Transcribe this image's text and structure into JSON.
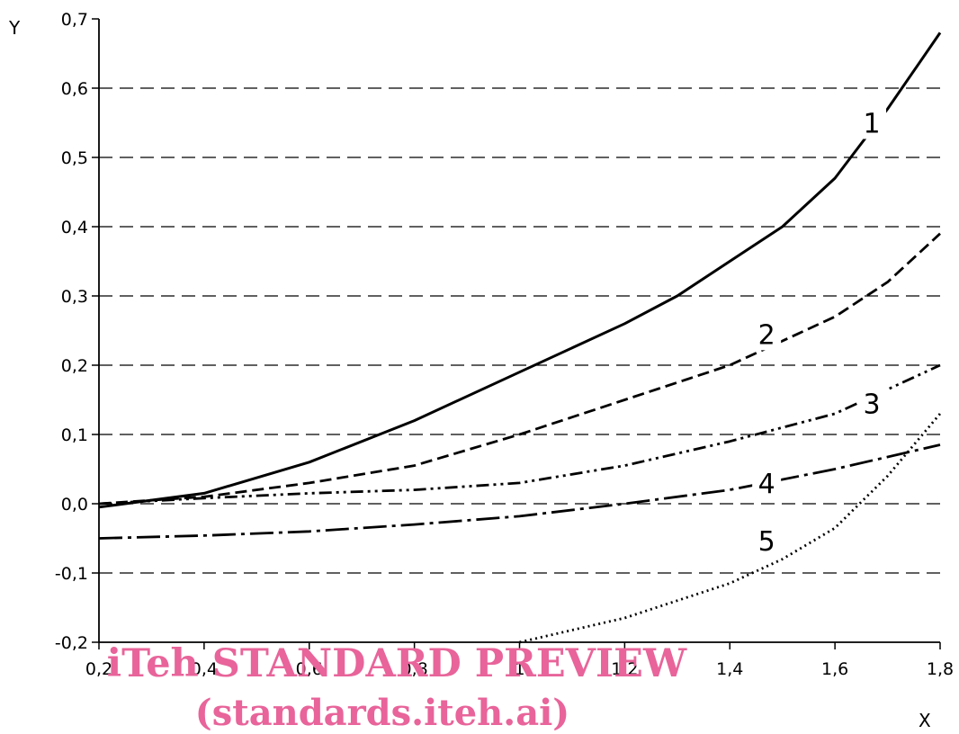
{
  "chart_data": {
    "type": "line",
    "xlabel": "X",
    "ylabel": "Y",
    "xlim": [
      0.2,
      1.8
    ],
    "ylim": [
      -0.2,
      0.7
    ],
    "x_ticks": [
      "0,2",
      "0,4",
      "0,6",
      "0,8",
      "1",
      "1,2",
      "1,4",
      "1,6",
      "1,8"
    ],
    "y_ticks": [
      "-0,2",
      "-0,1",
      "0,0",
      "0,1",
      "0,2",
      "0,3",
      "0,4",
      "0,5",
      "0,6",
      "0,7"
    ],
    "grid": "horizontal dashed",
    "series": [
      {
        "name": "1",
        "line_style": "solid",
        "x": [
          0.2,
          0.4,
          0.6,
          0.8,
          1.0,
          1.2,
          1.3,
          1.4,
          1.5,
          1.6,
          1.7,
          1.8
        ],
        "y": [
          -0.005,
          0.015,
          0.06,
          0.12,
          0.19,
          0.26,
          0.3,
          0.35,
          0.4,
          0.47,
          0.57,
          0.68
        ]
      },
      {
        "name": "2",
        "line_style": "dashed",
        "x": [
          0.2,
          0.4,
          0.6,
          0.8,
          1.0,
          1.2,
          1.4,
          1.6,
          1.7,
          1.8
        ],
        "y": [
          0.0,
          0.01,
          0.03,
          0.055,
          0.1,
          0.15,
          0.2,
          0.27,
          0.32,
          0.39
        ]
      },
      {
        "name": "3",
        "line_style": "dash-dot-dot",
        "x": [
          0.2,
          0.4,
          0.6,
          0.8,
          1.0,
          1.2,
          1.4,
          1.6,
          1.8
        ],
        "y": [
          0.0,
          0.008,
          0.015,
          0.02,
          0.03,
          0.055,
          0.09,
          0.13,
          0.2
        ]
      },
      {
        "name": "4",
        "line_style": "long-dash-dot",
        "x": [
          0.2,
          0.4,
          0.6,
          0.8,
          1.0,
          1.2,
          1.4,
          1.6,
          1.8
        ],
        "y": [
          -0.05,
          -0.046,
          -0.04,
          -0.03,
          -0.018,
          0.0,
          0.02,
          0.05,
          0.085
        ]
      },
      {
        "name": "5",
        "line_style": "dotted",
        "x": [
          1.0,
          1.2,
          1.4,
          1.5,
          1.6,
          1.7,
          1.8
        ],
        "y": [
          -0.2,
          -0.165,
          -0.115,
          -0.08,
          -0.035,
          0.04,
          0.13
        ]
      }
    ],
    "annotations": [
      "1",
      "2",
      "3",
      "4",
      "5"
    ]
  },
  "watermark": {
    "line1": "iTeh STANDARD PREVIEW",
    "line2": "(standards.iteh.ai)"
  }
}
